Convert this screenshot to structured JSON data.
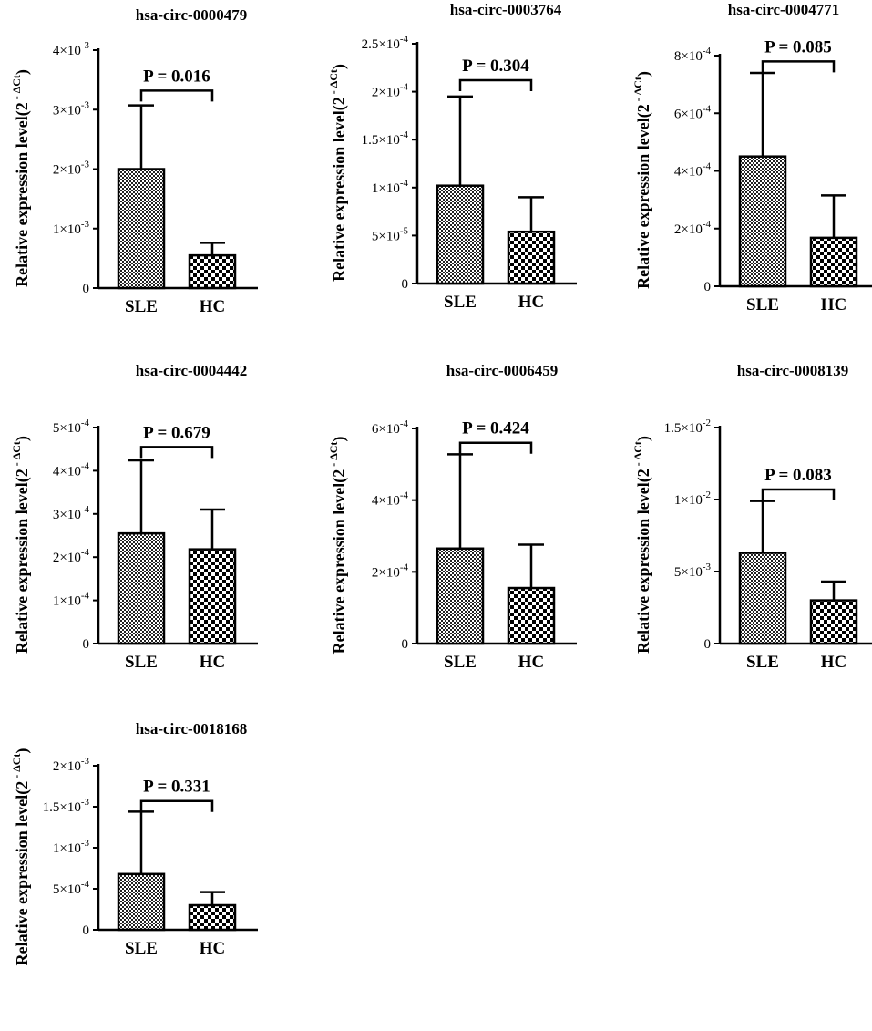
{
  "chart_data": [
    {
      "type": "bar",
      "title": "hsa-circ-0000479",
      "ylabel": "Relative expression level(2",
      "ylabel_superscript": "- ΔCt",
      "ylabel_close": ")",
      "categories": [
        "SLE",
        "HC"
      ],
      "values": [
        0.002,
        0.00055
      ],
      "error_upper": [
        0.00307,
        0.00076
      ],
      "ylim": [
        0,
        0.004
      ],
      "yticks": [
        {
          "value": 0,
          "mantissa": "0",
          "exponent": ""
        },
        {
          "value": 0.001,
          "mantissa": "1×10",
          "exponent": "-3"
        },
        {
          "value": 0.002,
          "mantissa": "2×10",
          "exponent": "-3"
        },
        {
          "value": 0.003,
          "mantissa": "3×10",
          "exponent": "-3"
        },
        {
          "value": 0.004,
          "mantissa": "4×10",
          "exponent": "-3"
        }
      ],
      "bracket_value": 0.00332,
      "p_label": "P = 0.016"
    },
    {
      "type": "bar",
      "title": "hsa-circ-0003764",
      "ylabel": "Relative expression level(2",
      "ylabel_superscript": "- ΔCt",
      "ylabel_close": ")",
      "categories": [
        "SLE",
        "HC"
      ],
      "values": [
        0.000102,
        5.4e-05
      ],
      "error_upper": [
        0.000195,
        9e-05
      ],
      "ylim": [
        0,
        0.00025
      ],
      "yticks": [
        {
          "value": 0,
          "mantissa": "0",
          "exponent": ""
        },
        {
          "value": 5e-05,
          "mantissa": "5×10",
          "exponent": "-5"
        },
        {
          "value": 0.0001,
          "mantissa": "1×10",
          "exponent": "-4"
        },
        {
          "value": 0.00015,
          "mantissa": "1.5×10",
          "exponent": "-4"
        },
        {
          "value": 0.0002,
          "mantissa": "2×10",
          "exponent": "-4"
        },
        {
          "value": 0.00025,
          "mantissa": "2.5×10",
          "exponent": "-4"
        }
      ],
      "bracket_value": 0.000212,
      "p_label": "P = 0.304"
    },
    {
      "type": "bar",
      "title": "hsa-circ-0004771",
      "ylabel": "Relative expression level(2",
      "ylabel_superscript": "- ΔCt",
      "ylabel_close": ")",
      "categories": [
        "SLE",
        "HC"
      ],
      "values": [
        0.00045,
        0.000168
      ],
      "error_upper": [
        0.00074,
        0.000315
      ],
      "ylim": [
        0,
        0.0008
      ],
      "yticks": [
        {
          "value": 0,
          "mantissa": "0",
          "exponent": ""
        },
        {
          "value": 0.0002,
          "mantissa": "2×10",
          "exponent": "-4"
        },
        {
          "value": 0.0004,
          "mantissa": "4×10",
          "exponent": "-4"
        },
        {
          "value": 0.0006,
          "mantissa": "6×10",
          "exponent": "-4"
        },
        {
          "value": 0.0008,
          "mantissa": "8×10",
          "exponent": "-4"
        }
      ],
      "bracket_value": 0.00078,
      "p_label": "P = 0.085"
    },
    {
      "type": "bar",
      "title": "hsa-circ-0004442",
      "ylabel": "Relative expression level(2",
      "ylabel_superscript": "- ΔCt",
      "ylabel_close": ")",
      "categories": [
        "SLE",
        "HC"
      ],
      "values": [
        0.000255,
        0.000218
      ],
      "error_upper": [
        0.000424,
        0.00031
      ],
      "ylim": [
        0,
        0.0005
      ],
      "yticks": [
        {
          "value": 0,
          "mantissa": "0",
          "exponent": ""
        },
        {
          "value": 0.0001,
          "mantissa": "1×10",
          "exponent": "-4"
        },
        {
          "value": 0.0002,
          "mantissa": "2×10",
          "exponent": "-4"
        },
        {
          "value": 0.0003,
          "mantissa": "3×10",
          "exponent": "-4"
        },
        {
          "value": 0.0004,
          "mantissa": "4×10",
          "exponent": "-4"
        },
        {
          "value": 0.0005,
          "mantissa": "5×10",
          "exponent": "-4"
        }
      ],
      "bracket_value": 0.000455,
      "p_label": "P = 0.679"
    },
    {
      "type": "bar",
      "title": "hsa-circ-0006459",
      "ylabel": "Relative expression level(2",
      "ylabel_superscript": "- ΔCt",
      "ylabel_close": ")",
      "categories": [
        "SLE",
        "HC"
      ],
      "values": [
        0.000265,
        0.000155
      ],
      "error_upper": [
        0.000528,
        0.000276
      ],
      "ylim": [
        0,
        0.0006
      ],
      "yticks": [
        {
          "value": 0,
          "mantissa": "0",
          "exponent": ""
        },
        {
          "value": 0.0002,
          "mantissa": "2×10",
          "exponent": "-4"
        },
        {
          "value": 0.0004,
          "mantissa": "4×10",
          "exponent": "-4"
        },
        {
          "value": 0.0006,
          "mantissa": "6×10",
          "exponent": "-4"
        }
      ],
      "bracket_value": 0.00056,
      "p_label": "P = 0.424"
    },
    {
      "type": "bar",
      "title": "hsa-circ-0008139",
      "ylabel": "Relative expression level(2",
      "ylabel_superscript": "- ΔCt",
      "ylabel_close": ")",
      "categories": [
        "SLE",
        "HC"
      ],
      "values": [
        0.0063,
        0.003
      ],
      "error_upper": [
        0.0099,
        0.0043
      ],
      "ylim": [
        0,
        0.015
      ],
      "yticks": [
        {
          "value": 0,
          "mantissa": "0",
          "exponent": ""
        },
        {
          "value": 0.005,
          "mantissa": "5×10",
          "exponent": "-3"
        },
        {
          "value": 0.01,
          "mantissa": "1×10",
          "exponent": "-2"
        },
        {
          "value": 0.015,
          "mantissa": "1.5×10",
          "exponent": "-2"
        }
      ],
      "bracket_value": 0.0107,
      "p_label": "P = 0.083"
    },
    {
      "type": "bar",
      "title": "hsa-circ-0018168",
      "ylabel": "Relative expression level(2",
      "ylabel_superscript": "- ΔCt",
      "ylabel_close": ")",
      "categories": [
        "SLE",
        "HC"
      ],
      "values": [
        0.00068,
        0.0003
      ],
      "error_upper": [
        0.00144,
        0.00046
      ],
      "ylim": [
        0,
        0.002
      ],
      "yticks": [
        {
          "value": 0,
          "mantissa": "0",
          "exponent": ""
        },
        {
          "value": 0.0005,
          "mantissa": "5×10",
          "exponent": "-4"
        },
        {
          "value": 0.001,
          "mantissa": "1×10",
          "exponent": "-3"
        },
        {
          "value": 0.0015,
          "mantissa": "1.5×10",
          "exponent": "-3"
        },
        {
          "value": 0.002,
          "mantissa": "2×10",
          "exponent": "-3"
        }
      ],
      "bracket_value": 0.00157,
      "p_label": "P = 0.331"
    }
  ]
}
